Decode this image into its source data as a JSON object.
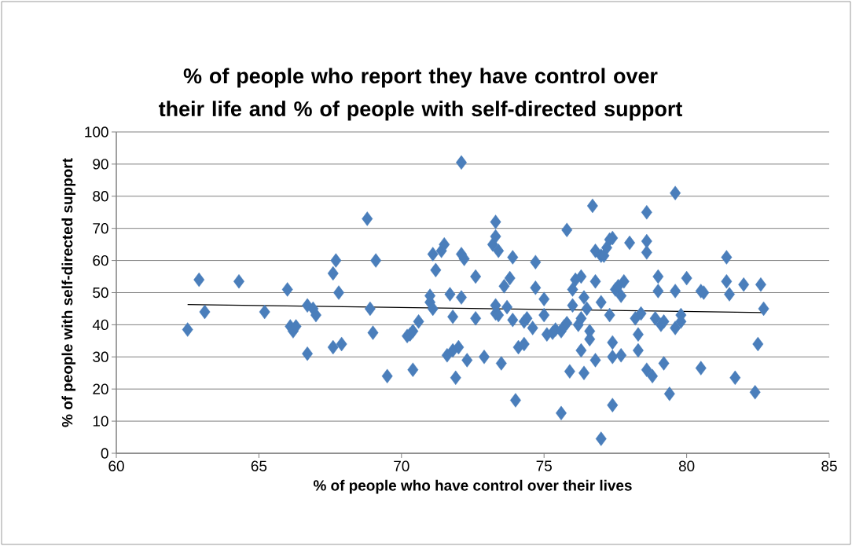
{
  "chart_data": {
    "type": "scatter",
    "title": "% of people who report they have control over their life and % of people with self-directed support",
    "xlabel": "% of people who have control over their lives",
    "ylabel": "% of people with self-directed support",
    "xlim": [
      60,
      85
    ],
    "xticks": [
      60,
      65,
      70,
      75,
      80,
      85
    ],
    "ylim": [
      0,
      100
    ],
    "yticks": [
      0,
      10,
      20,
      30,
      40,
      50,
      60,
      70,
      80,
      90,
      100
    ],
    "grid": "y",
    "series": [
      {
        "marker": "diamond",
        "color": "#4a7ebb",
        "x": [
          62.5,
          62.9,
          63.1,
          64.3,
          65.2,
          66.0,
          66.1,
          66.2,
          66.3,
          66.7,
          66.7,
          66.9,
          67.0,
          67.6,
          67.6,
          67.7,
          67.8,
          67.9,
          68.8,
          68.9,
          69.0,
          69.1,
          69.5,
          70.2,
          70.3,
          70.4,
          70.4,
          70.6,
          71.0,
          71.0,
          71.1,
          71.1,
          71.2,
          71.4,
          71.5,
          71.6,
          71.7,
          71.8,
          71.8,
          71.9,
          72.0,
          72.1,
          72.1,
          72.1,
          72.2,
          72.3,
          72.6,
          72.6,
          72.9,
          73.2,
          73.3,
          73.3,
          73.4,
          73.3,
          73.3,
          73.4,
          73.5,
          73.6,
          73.7,
          73.8,
          73.9,
          73.9,
          74.0,
          74.1,
          74.3,
          74.3,
          74.4,
          74.6,
          74.7,
          74.7,
          75.0,
          75.0,
          75.1,
          75.3,
          75.4,
          75.6,
          75.7,
          75.6,
          75.8,
          75.8,
          75.9,
          76.0,
          76.0,
          76.1,
          76.2,
          76.3,
          76.3,
          76.4,
          76.3,
          76.4,
          76.5,
          76.6,
          76.6,
          76.7,
          76.8,
          76.8,
          76.8,
          77.0,
          77.0,
          77.0,
          77.1,
          77.2,
          77.3,
          77.3,
          77.4,
          77.4,
          77.4,
          77.4,
          77.5,
          77.6,
          77.7,
          77.7,
          77.8,
          78.0,
          78.2,
          78.3,
          78.3,
          78.4,
          78.6,
          78.6,
          78.6,
          78.6,
          78.8,
          78.9,
          79.0,
          79.0,
          79.1,
          79.2,
          79.2,
          79.4,
          79.6,
          79.6,
          79.6,
          79.8,
          79.8,
          80.0,
          80.5,
          80.6,
          80.5,
          81.4,
          81.4,
          81.5,
          81.7,
          82.0,
          82.4,
          82.5,
          82.6,
          82.7
        ],
        "values": [
          38.5,
          54,
          44,
          53.5,
          44,
          51,
          39.5,
          38,
          39.5,
          31,
          46,
          45,
          43,
          33,
          56,
          60,
          50,
          34,
          73,
          45,
          37.5,
          60,
          24,
          36.5,
          37,
          38,
          26,
          41,
          49,
          47,
          45,
          62,
          57,
          63,
          65,
          30.5,
          49.5,
          32,
          42.5,
          23.5,
          33,
          90.5,
          62,
          48.5,
          60.5,
          29,
          55,
          42,
          30,
          65,
          72,
          67.5,
          63,
          46,
          43.5,
          43,
          28,
          52,
          45.5,
          54.5,
          61,
          41.5,
          16.5,
          33,
          34,
          41,
          42,
          39,
          51.5,
          59.5,
          48,
          43,
          37,
          37.5,
          38.5,
          38,
          39.5,
          12.5,
          69.5,
          40.5,
          25.5,
          51,
          46,
          54,
          40,
          42,
          55,
          48.5,
          32,
          25,
          45,
          38,
          35.5,
          77,
          53.5,
          29,
          63,
          61.5,
          4.5,
          47,
          61.5,
          64,
          43,
          66.5,
          67,
          34.5,
          30,
          15,
          51,
          52,
          30.5,
          49,
          53.5,
          65.5,
          42,
          37,
          32,
          43.5,
          75,
          66,
          62.5,
          26,
          24,
          42,
          50.5,
          55,
          40,
          41,
          28,
          18.5,
          81,
          50.5,
          39,
          43,
          41,
          54.5,
          50.5,
          50,
          26.5,
          61,
          53.5,
          49.5,
          23.5,
          52.5,
          19,
          34,
          52.5,
          45
        ]
      },
      {
        "type": "line",
        "marker": "none",
        "color": "#000000",
        "x": [
          62.5,
          82.7
        ],
        "values": [
          46.3,
          43.8
        ]
      }
    ]
  }
}
